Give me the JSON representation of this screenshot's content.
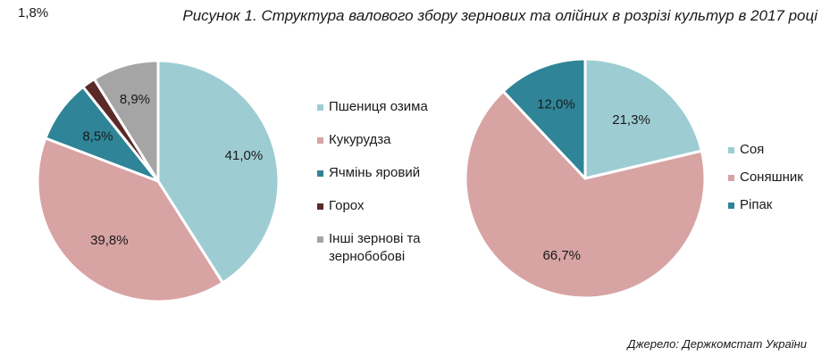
{
  "title": "Рисунок 1. Структура валового збору зернових та олійних в розрізі культур в 2017 році",
  "source": "Джерело: Держкомстат України",
  "chart_data": [
    {
      "type": "pie",
      "title": "",
      "start_angle_deg": 0,
      "direction": "clockwise",
      "slices": [
        {
          "label": "Пшениця озима",
          "value": 41.0,
          "value_label": "41,0%",
          "color": "#9dcdd3"
        },
        {
          "label": "Кукурудза",
          "value": 39.8,
          "value_label": "39,8%",
          "color": "#d8a3a3"
        },
        {
          "label": "Ячмінь яровий",
          "value": 8.5,
          "value_label": "8,5%",
          "color": "#2f8497"
        },
        {
          "label": "Горох",
          "value": 1.8,
          "value_label": "1,8%",
          "color": "#5a2a28"
        },
        {
          "label": "Інші зернові та зернобобові",
          "value": 8.9,
          "value_label": "8,9%",
          "color": "#a5a5a5"
        }
      ],
      "legend_position": "right"
    },
    {
      "type": "pie",
      "title": "",
      "start_angle_deg": 0,
      "direction": "clockwise",
      "slices": [
        {
          "label": "Соя",
          "value": 21.3,
          "value_label": "21,3%",
          "color": "#9dcdd3"
        },
        {
          "label": "Соняшник",
          "value": 66.7,
          "value_label": "66,7%",
          "color": "#d8a3a3"
        },
        {
          "label": "Ріпак",
          "value": 12.0,
          "value_label": "12,0%",
          "color": "#2f8497"
        }
      ],
      "legend_position": "right"
    }
  ]
}
